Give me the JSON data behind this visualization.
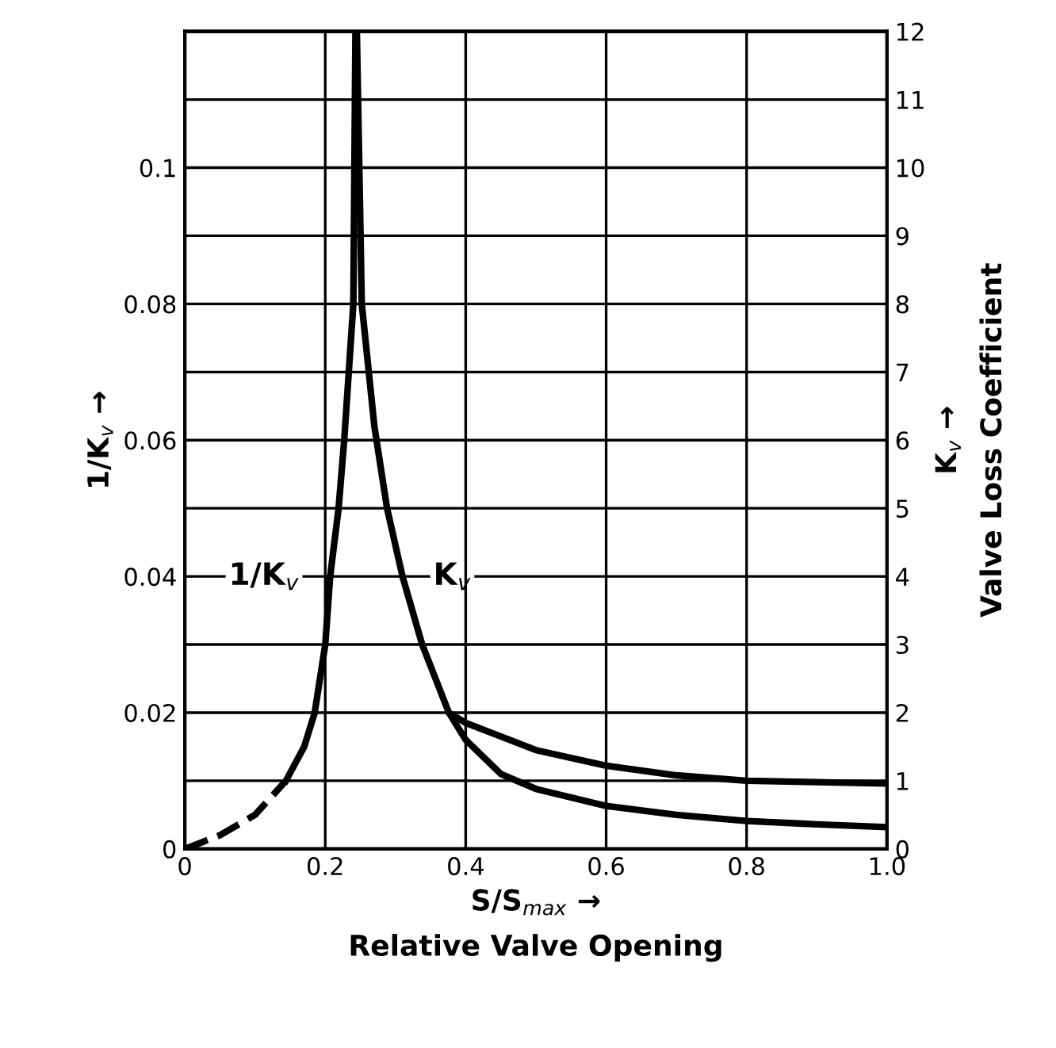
{
  "chart_data": {
    "type": "line",
    "xlabel": "S/S$_{max}$ →\nRelative Valve Opening",
    "ylabel": "1/K$_{v}$ →",
    "y2label": "K$_{v}$ →\nValve Loss Coefficient",
    "xlim": [
      0,
      1.0
    ],
    "xticks": [
      0,
      0.2,
      0.4,
      0.6,
      0.8,
      {
        "value": 1.0,
        "label": "1.0"
      }
    ],
    "ylim": [
      0,
      0.12
    ],
    "yticks": [
      0,
      0.02,
      0.04,
      0.06,
      0.08,
      0.1
    ],
    "y2lim": [
      0,
      12
    ],
    "y2ticks": [
      0,
      1,
      2,
      3,
      4,
      5,
      6,
      7,
      8,
      9,
      10,
      11,
      12
    ],
    "grid": true,
    "marker": "none",
    "series": [
      {
        "color": "#000000",
        "line_style": "dashed",
        "x": [
          0,
          0.05,
          0.1,
          0.144
        ],
        "values": [
          0,
          0.002,
          0.005,
          0.01
        ]
      },
      {
        "name": "1/K$_{v}$",
        "color": "#000000",
        "line_style": "solid",
        "x": [
          0.144,
          0.17,
          0.185,
          0.2,
          0.207,
          0.219,
          0.227,
          0.24,
          0.243
        ],
        "values": [
          0.01,
          0.015,
          0.02,
          0.03,
          0.04,
          0.05,
          0.06,
          0.08,
          0.12
        ]
      },
      {
        "name": "K$_{v}$",
        "color": "#000000",
        "line_style": "solid",
        "axis": "y2",
        "x": [
          0.245,
          0.252,
          0.27,
          0.288,
          0.31,
          0.338,
          0.376,
          0.4,
          0.5,
          0.6,
          0.7,
          0.8,
          0.9,
          1.0
        ],
        "values": [
          12,
          8,
          6.2,
          5,
          4,
          3,
          2,
          1.85,
          1.45,
          1.22,
          1.08,
          1.0,
          0.98,
          0.96
        ]
      },
      {
        "color": "#000000",
        "line_style": "solid",
        "axis": "y2",
        "x": [
          0.376,
          0.4,
          0.45,
          0.5,
          0.6,
          0.7,
          0.8,
          0.9,
          1.0
        ],
        "values": [
          2,
          1.6,
          1.1,
          0.88,
          0.63,
          0.5,
          0.41,
          0.36,
          0.32
        ]
      }
    ]
  }
}
